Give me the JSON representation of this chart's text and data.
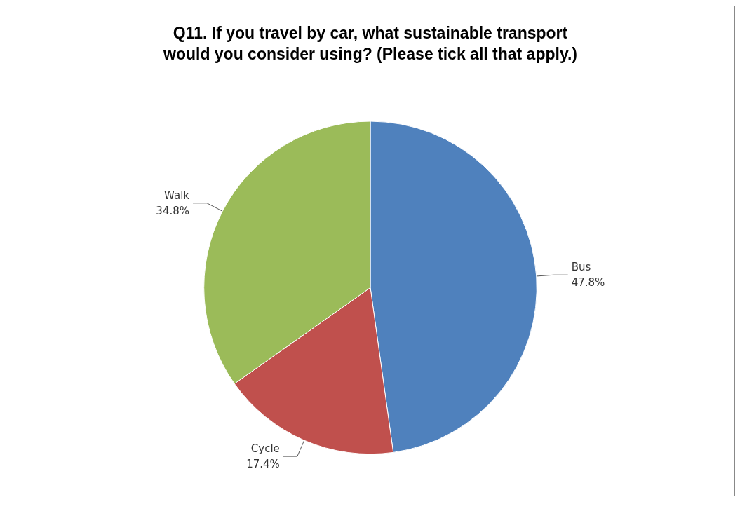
{
  "chart_data": {
    "type": "pie",
    "title": "Q11. If you travel by car, what sustainable transport\nwould you consider using? (Please tick all that apply.)",
    "categories": [
      "Bus",
      "Cycle",
      "Walk"
    ],
    "values": [
      47.8,
      17.4,
      34.8
    ],
    "colors": [
      "#4f81bd",
      "#c0504d",
      "#9bbb59"
    ],
    "value_labels": [
      "47.8%",
      "17.4%",
      "34.8%"
    ]
  }
}
